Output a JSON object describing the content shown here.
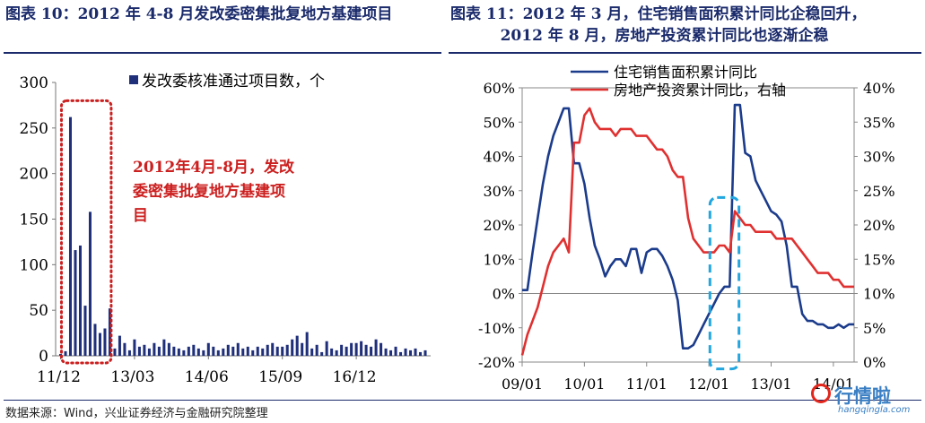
{
  "titles": {
    "left": "图表 10：2012 年 4-8 月发改委密集批复地方基建项目",
    "right_line1": "图表 11：2012 年 3 月，住宅销售面积累计同比企稳回升，",
    "right_line2": "2012 年 8 月，房地产投资累计同比也逐渐企稳"
  },
  "source": "数据来源：Wind，兴业证券经济与金融研究院整理",
  "watermark": {
    "text": "行情啦",
    "sub": "hangqingla.com"
  },
  "colors": {
    "navy": "#1a2a6b",
    "bar": "#1f2f7a",
    "red_line": "#e03030",
    "red_text": "#cc1f1f",
    "blue_line": "#1b3b8b",
    "dash_box": "#22a6e0",
    "dot_box": "#cc1f1f"
  },
  "chart_data": [
    {
      "type": "bar",
      "legend": "发改委核准通过项目数，个",
      "annotation": [
        "2012年4月-8月，发改",
        "委密集批复地方基建项",
        "目"
      ],
      "ylim": [
        0,
        300
      ],
      "yticks": [
        0,
        50,
        100,
        150,
        200,
        250,
        300
      ],
      "ytick_labels": [
        "0",
        "50",
        "100",
        "150",
        "200",
        "250",
        "300"
      ],
      "xtick_labels": [
        "11/12",
        "13/03",
        "14/06",
        "15/09",
        "16/12"
      ],
      "xtick_indices": [
        0,
        15,
        30,
        45,
        60
      ],
      "categories_count": 75,
      "values": [
        2,
        5,
        262,
        116,
        121,
        55,
        158,
        35,
        25,
        30,
        52,
        8,
        22,
        14,
        6,
        18,
        10,
        12,
        8,
        14,
        10,
        18,
        14,
        10,
        8,
        6,
        10,
        12,
        8,
        6,
        14,
        10,
        6,
        8,
        12,
        10,
        14,
        8,
        10,
        6,
        10,
        8,
        12,
        14,
        10,
        10,
        12,
        18,
        22,
        14,
        26,
        8,
        12,
        4,
        16,
        8,
        6,
        12,
        10,
        14,
        14,
        16,
        12,
        10,
        18,
        14,
        8,
        6,
        10,
        4,
        8,
        6,
        8,
        4,
        6
      ]
    },
    {
      "type": "line",
      "xtick_labels": [
        "09/01",
        "10/01",
        "11/01",
        "12/01",
        "13/01",
        "14/01"
      ],
      "xlim": [
        0,
        64
      ],
      "xticks": [
        0,
        12,
        24,
        36,
        48,
        60
      ],
      "ylim_left": [
        -20,
        60
      ],
      "yticks_left": [
        -20,
        -10,
        0,
        10,
        20,
        30,
        40,
        50,
        60
      ],
      "ytick_labels_left": [
        "-20%",
        "-10%",
        "0%",
        "10%",
        "20%",
        "30%",
        "40%",
        "50%",
        "60%"
      ],
      "ylim_right": [
        0,
        40
      ],
      "yticks_right": [
        0,
        5,
        10,
        15,
        20,
        25,
        30,
        35,
        40
      ],
      "ytick_labels_right": [
        "0%",
        "5%",
        "10%",
        "15%",
        "20%",
        "25%",
        "30%",
        "35%",
        "40%"
      ],
      "series": [
        {
          "name": "住宅销售面积累计同比",
          "axis": "left",
          "x": [
            0,
            1,
            2,
            3,
            4,
            5,
            6,
            7,
            8,
            9,
            10,
            11,
            12,
            13,
            14,
            15,
            16,
            17,
            18,
            19,
            20,
            21,
            22,
            23,
            24,
            25,
            26,
            27,
            28,
            29,
            30,
            31,
            32,
            33,
            34,
            35,
            36,
            37,
            38,
            39,
            40,
            41,
            42,
            43,
            44,
            45,
            46,
            47,
            48,
            49,
            50,
            51,
            52,
            53,
            54,
            55,
            56,
            57,
            58,
            59,
            60,
            61,
            62,
            63,
            64
          ],
          "values": [
            1,
            1,
            12,
            22,
            32,
            40,
            46,
            50,
            54,
            54,
            38,
            38,
            32,
            22,
            14,
            10,
            5,
            8,
            10,
            10,
            8,
            13,
            13,
            6,
            12,
            13,
            13,
            11,
            8,
            4,
            -2,
            -16,
            -16,
            -15,
            -12,
            -9,
            -6,
            -3,
            0,
            2,
            2,
            55,
            55,
            41,
            40,
            33,
            30,
            27,
            24,
            23,
            21,
            14,
            2,
            2,
            -6,
            -8,
            -8,
            -9,
            -9,
            -10,
            -10,
            -9,
            -10,
            -9,
            -9
          ]
        },
        {
          "name": "房地产投资累计同比，右轴",
          "axis": "right",
          "x": [
            0,
            1,
            2,
            3,
            4,
            5,
            6,
            7,
            8,
            9,
            10,
            11,
            12,
            13,
            14,
            15,
            16,
            17,
            18,
            19,
            20,
            21,
            22,
            23,
            24,
            25,
            26,
            27,
            28,
            29,
            30,
            31,
            32,
            33,
            34,
            35,
            36,
            37,
            38,
            39,
            40,
            41,
            42,
            43,
            44,
            45,
            46,
            47,
            48,
            49,
            50,
            51,
            52,
            53,
            54,
            55,
            56,
            57,
            58,
            59,
            60,
            61,
            62,
            63,
            64
          ],
          "values": [
            1,
            4,
            6,
            8,
            11,
            14,
            16,
            17,
            18,
            16,
            32,
            32,
            36,
            37,
            35,
            34,
            34,
            34,
            33,
            34,
            34,
            34,
            33,
            33,
            33,
            32,
            31,
            31,
            30,
            28,
            27,
            27,
            21,
            18,
            17,
            16,
            16,
            16,
            17,
            17,
            16,
            22,
            21,
            20,
            20,
            19,
            19,
            19,
            19,
            18,
            18,
            18,
            18,
            17,
            16,
            15,
            14,
            13,
            13,
            13,
            12,
            12,
            11,
            11,
            11
          ]
        }
      ]
    }
  ]
}
